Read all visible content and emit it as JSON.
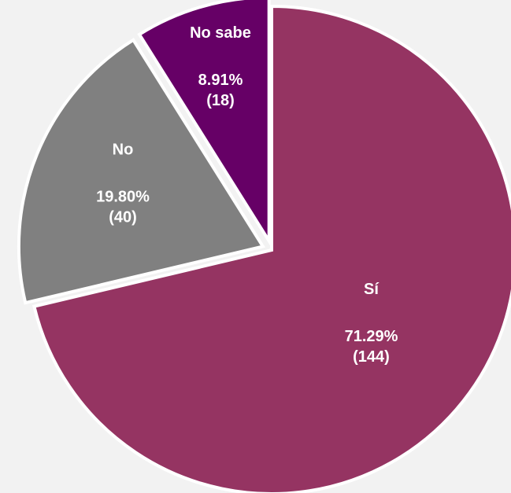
{
  "chart_data": {
    "type": "pie",
    "slices": [
      {
        "label": "Sí",
        "percent_label": "71.29%",
        "count_label": "(144)",
        "value": 144,
        "percent": 71.29,
        "color": "#953462"
      },
      {
        "label": "No",
        "percent_label": "19.80%",
        "count_label": "(40)",
        "value": 40,
        "percent": 19.8,
        "color": "#808080"
      },
      {
        "label": "No sabe",
        "percent_label": "8.91%",
        "count_label": "(18)",
        "value": 18,
        "percent": 8.91,
        "color": "#660066"
      }
    ],
    "background": "#f2f2f2"
  }
}
